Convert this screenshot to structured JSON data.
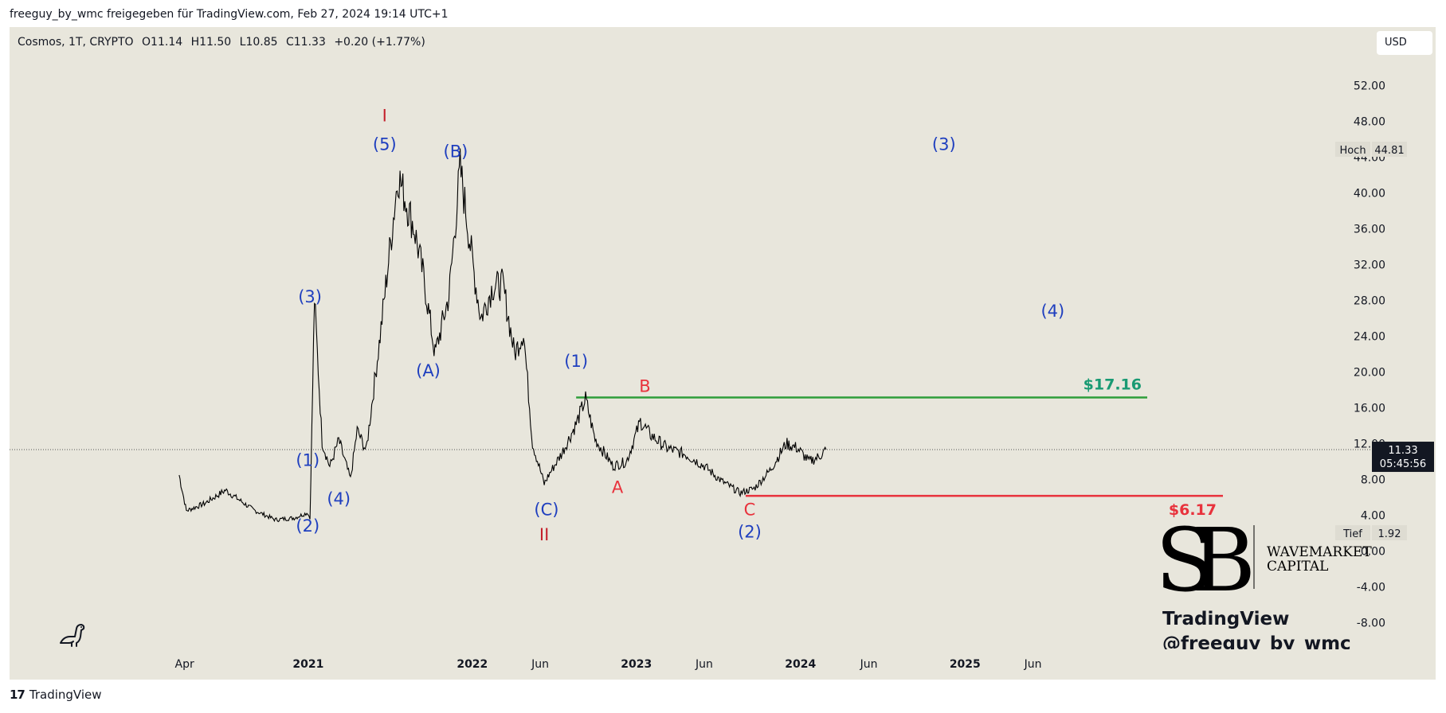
{
  "header": {
    "attribution": "freeguy_by_wmc freigegeben für TradingView.com, Feb 27, 2024 19:14 UTC+1"
  },
  "legend": {
    "symbol": "Cosmos, 1T, CRYPTO",
    "open": "O11.14",
    "high": "H11.50",
    "low": "L10.85",
    "close": "C11.33",
    "change": "+0.20 (+1.77%)"
  },
  "currency_button": "USD",
  "footer": {
    "logo_mark": "17",
    "brand": "TradingView"
  },
  "colors": {
    "background": "#e8e6dc",
    "wave_blue": "#1f3fbf",
    "wave_red": "#c4202b",
    "target_green": "#2e9e3a",
    "target_red": "#e8323c",
    "green_label": "#199a73"
  },
  "chart_data": {
    "type": "line",
    "title": "",
    "x_tick_labels": [
      "Apr",
      "2021",
      "2022",
      "Jun",
      "2023",
      "Jun",
      "2024",
      "Jun",
      "2025",
      "Jun"
    ],
    "y_tick_labels": [
      "52.00",
      "48.00",
      "44.00",
      "40.00",
      "36.00",
      "32.00",
      "28.00",
      "24.00",
      "20.00",
      "16.00",
      "12.00",
      "8.00",
      "4.00",
      "0.00",
      "-4.00",
      "-8.00"
    ],
    "ylim": [
      -8,
      52
    ],
    "series": [
      {
        "values_note": "",
        "x": [
          "2020-03-20",
          "2020-04-05",
          "2020-05-15",
          "2020-07-01",
          "2020-09-01",
          "2020-10-20",
          "2020-12-01",
          "2020-12-31",
          "2021-01-05",
          "2021-01-15",
          "2021-02-01",
          "2021-02-18",
          "2021-03-10",
          "2021-04-05",
          "2021-04-20",
          "2021-05-10",
          "2021-06-10",
          "2021-07-20",
          "2021-08-25",
          "2021-09-15",
          "2021-10-10",
          "2021-11-10",
          "2021-12-05",
          "2022-01-05",
          "2022-01-20",
          "2022-02-15",
          "2022-03-10",
          "2022-04-05",
          "2022-04-25",
          "2022-05-15",
          "2022-06-10",
          "2022-06-20",
          "2022-07-20",
          "2022-08-20",
          "2022-09-10",
          "2022-10-01",
          "2022-11-10",
          "2022-12-10",
          "2023-01-10",
          "2023-02-01",
          "2023-03-10",
          "2023-04-20",
          "2023-06-01",
          "2023-07-10",
          "2023-08-20",
          "2023-09-20",
          "2023-10-25",
          "2023-11-30",
          "2023-12-25",
          "2024-01-20",
          "2024-02-10",
          "2024-02-27"
        ],
        "y": [
          8.5,
          4.5,
          5.3,
          6.8,
          4.6,
          3.5,
          3.7,
          4.3,
          3.6,
          28.2,
          12.2,
          9.4,
          12.4,
          8.0,
          13.5,
          11.2,
          24.0,
          42.0,
          36.0,
          30.5,
          22.0,
          28.5,
          42.8,
          31.0,
          26.0,
          29.5,
          29.8,
          22.0,
          24.5,
          12.0,
          7.5,
          8.5,
          11.0,
          14.2,
          17.0,
          12.5,
          9.5,
          10.0,
          14.5,
          13.0,
          11.5,
          10.8,
          9.5,
          7.8,
          6.5,
          7.0,
          9.0,
          12.0,
          11.5,
          10.0,
          10.5,
          11.33
        ]
      }
    ],
    "current_price": "11.33",
    "countdown": "05:45:56",
    "high_marker": {
      "label": "Hoch",
      "value": "44.81"
    },
    "low_marker": {
      "label": "Tief",
      "value": "1.92"
    },
    "horizontal_levels": [
      {
        "label": "$17.16",
        "value": 17.16,
        "color": "#2e9e3a"
      },
      {
        "label": "$6.17",
        "value": 6.17,
        "color": "#e8323c"
      }
    ],
    "annotations": [
      {
        "text": "I",
        "color": "#c4202b",
        "x": "2021-06-20",
        "y": 48.0
      },
      {
        "text": "(5)",
        "color": "#1f3fbf",
        "x": "2021-06-20",
        "y": 44.8
      },
      {
        "text": "(B)",
        "color": "#1f3fbf",
        "x": "2021-11-25",
        "y": 44.0
      },
      {
        "text": "(3)",
        "color": "#1f3fbf",
        "x": "2021-01-05",
        "y": 27.8
      },
      {
        "text": "(A)",
        "color": "#1f3fbf",
        "x": "2021-09-25",
        "y": 19.5
      },
      {
        "text": "(1)",
        "color": "#1f3fbf",
        "x": "2020-12-31",
        "y": 9.5
      },
      {
        "text": "(4)",
        "color": "#1f3fbf",
        "x": "2021-03-10",
        "y": 5.2
      },
      {
        "text": "(2)",
        "color": "#1f3fbf",
        "x": "2020-12-31",
        "y": 2.2
      },
      {
        "text": "(C)",
        "color": "#1f3fbf",
        "x": "2022-06-15",
        "y": 4.0
      },
      {
        "text": "II",
        "color": "#c4202b",
        "x": "2022-06-10",
        "y": 1.2
      },
      {
        "text": "(1)",
        "color": "#1f3fbf",
        "x": "2022-08-20",
        "y": 20.6
      },
      {
        "text": "B",
        "color": "#e8323c",
        "x": "2023-01-20",
        "y": 17.8
      },
      {
        "text": "A",
        "color": "#e8323c",
        "x": "2022-11-20",
        "y": 6.5
      },
      {
        "text": "C",
        "color": "#e8323c",
        "x": "2023-09-10",
        "y": 4.0
      },
      {
        "text": "(2)",
        "color": "#1f3fbf",
        "x": "2023-09-10",
        "y": 1.5
      },
      {
        "text": "(3)",
        "color": "#1f3fbf",
        "x": "2024-11-15",
        "y": 44.8
      },
      {
        "text": "(4)",
        "color": "#1f3fbf",
        "x": "2025-07-15",
        "y": 26.2
      }
    ],
    "watermark": {
      "line1": "TradingView",
      "line2": "@freeguy_by_wmc"
    },
    "brand_logo": {
      "letters": "SB",
      "name_line1": "WAVEMARKET",
      "name_line2": "CAPITAL"
    }
  }
}
